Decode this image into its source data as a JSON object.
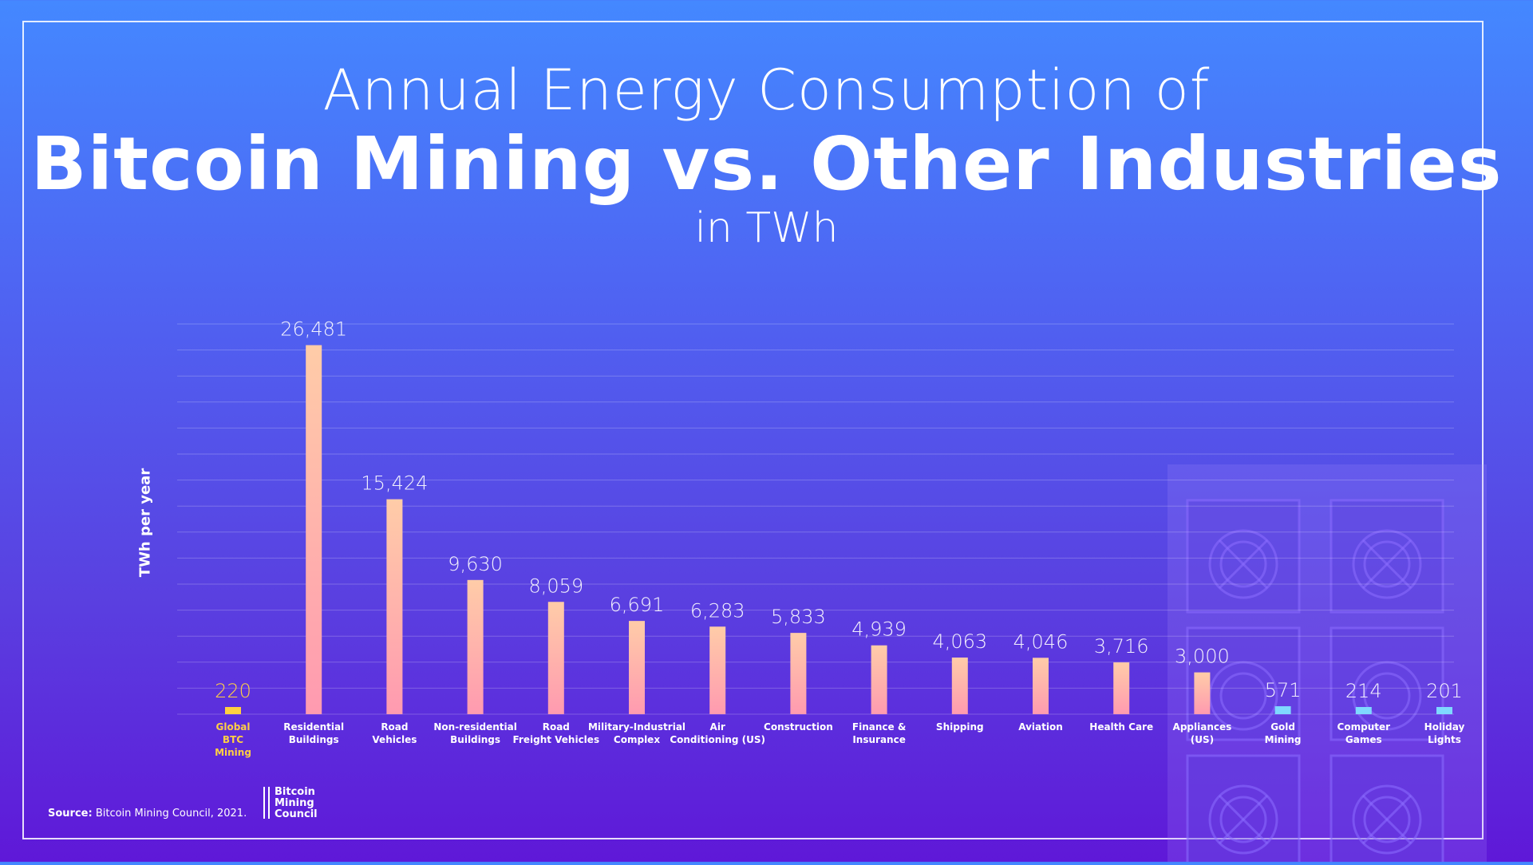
{
  "title": {
    "line1": "Annual Energy Consumption of",
    "line2": "Bitcoin Mining vs. Other Industries",
    "line3": "in TWh"
  },
  "colors": {
    "highlight": "#ffd040",
    "bar_top": "#ffcca8",
    "bar_bottom": "#ff9ab0",
    "small_bar": "#7fd8ff",
    "label_highlight": "#ffcf44"
  },
  "decor_icon": "asic-miner-icon",
  "footer": {
    "source_label": "Source:",
    "source_text": "Bitcoin Mining Council, 2021.",
    "logo_lines": [
      "Bitcoin",
      "Mining",
      "Council"
    ]
  },
  "chart_data": {
    "type": "bar",
    "ylabel": "TWh per year",
    "xlabel": "",
    "ylim": [
      0,
      28000
    ],
    "grid": true,
    "categories": [
      "Global BTC Mining",
      "Residential Buildings",
      "Road Vehicles",
      "Non-residential Buildings",
      "Road Freight Vehicles",
      "Military-Industrial Complex",
      "Air Conditioning (US)",
      "Construction",
      "Finance & Insurance",
      "Shipping",
      "Aviation",
      "Health Care",
      "Appliances (US)",
      "Gold Mining",
      "Computer Games",
      "Holiday Lights"
    ],
    "category_lines": [
      [
        "Global",
        "BTC",
        "Mining"
      ],
      [
        "Residential",
        "Buildings"
      ],
      [
        "Road",
        "Vehicles"
      ],
      [
        "Non-residential",
        "Buildings"
      ],
      [
        "Road",
        "Freight Vehicles"
      ],
      [
        "Military-Industrial",
        "Complex"
      ],
      [
        "Air",
        "Conditioning (US)"
      ],
      [
        "Construction"
      ],
      [
        "Finance &",
        "Insurance"
      ],
      [
        "Shipping"
      ],
      [
        "Aviation"
      ],
      [
        "Health Care"
      ],
      [
        "Appliances",
        "(US)"
      ],
      [
        "Gold",
        "Mining"
      ],
      [
        "Computer",
        "Games"
      ],
      [
        "Holiday",
        "Lights"
      ]
    ],
    "values": [
      220,
      26481,
      15424,
      9630,
      8059,
      6691,
      6283,
      5833,
      4939,
      4063,
      4046,
      3716,
      3000,
      571,
      214,
      201
    ],
    "value_labels": [
      "220",
      "26,481",
      "15,424",
      "9,630",
      "8,059",
      "6,691",
      "6,283",
      "5,833",
      "4,939",
      "4,063",
      "4,046",
      "3,716",
      "3,000",
      "571",
      "214",
      "201"
    ],
    "highlight_index": 0,
    "small_bar_indices": [
      13,
      14,
      15
    ]
  }
}
